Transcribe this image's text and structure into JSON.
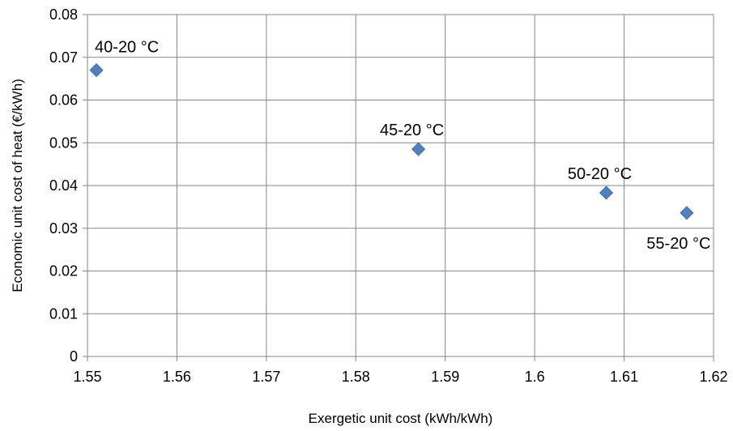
{
  "chart_data": {
    "type": "scatter",
    "title": "",
    "xlabel": "Exergetic unit cost (kWh/kWh)",
    "ylabel": "Economic unit cost of heat (€/kWh)",
    "xlim": [
      1.55,
      1.62
    ],
    "ylim": [
      0,
      0.08
    ],
    "x_ticks": [
      "1.55",
      "1.56",
      "1.57",
      "1.58",
      "1.59",
      "1.6",
      "1.61",
      "1.62"
    ],
    "y_ticks": [
      "0",
      "0.01",
      "0.02",
      "0.03",
      "0.04",
      "0.05",
      "0.06",
      "0.07",
      "0.08"
    ],
    "grid": true,
    "legend": "none",
    "marker": "diamond",
    "marker_color": "#4F81BD",
    "points": [
      {
        "x": 1.551,
        "y": 0.067,
        "label": "40-20 °C",
        "label_pos": "above-right"
      },
      {
        "x": 1.587,
        "y": 0.0485,
        "label": "45-20 °C",
        "label_pos": "above"
      },
      {
        "x": 1.608,
        "y": 0.0383,
        "label": "50-20 °C",
        "label_pos": "above"
      },
      {
        "x": 1.617,
        "y": 0.0336,
        "label": "55-20 °C",
        "label_pos": "below"
      }
    ]
  }
}
